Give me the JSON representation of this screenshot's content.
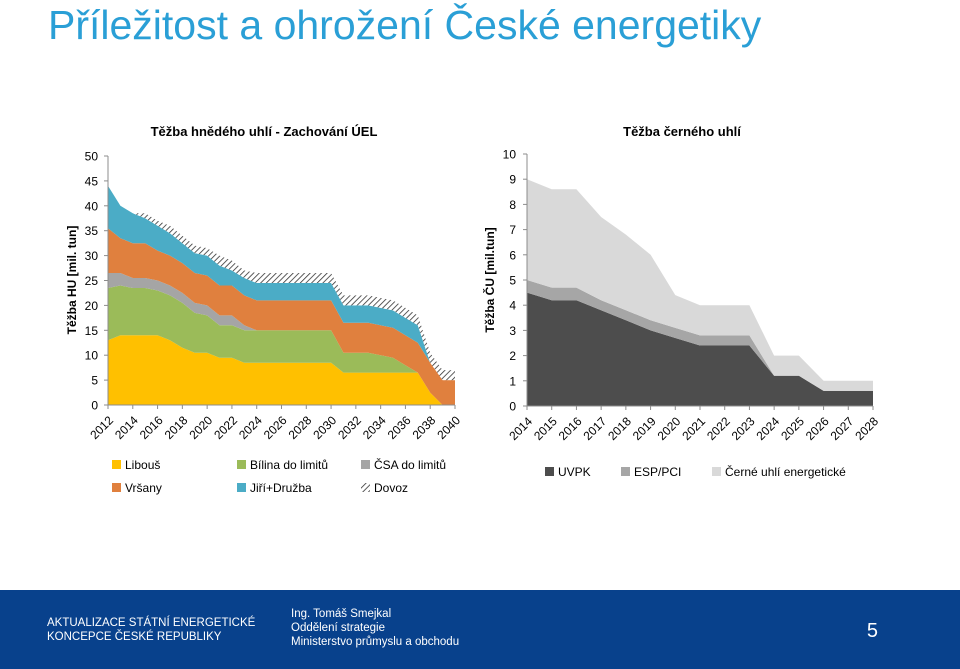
{
  "page_title": "Příležitost a ohrožení České energetiky",
  "footer": {
    "org_line1": "AKTUALIZACE STÁTNÍ ENERGETICKÉ",
    "org_line2": "KONCEPCE ČESKÉ REPUBLIKY",
    "author_name": "Ing. Tomáš Smejkal",
    "author_dept": "Oddělení strategie",
    "author_ministry": "Ministerstvo průmyslu a obchodu",
    "page_number": "5"
  },
  "colors": {
    "title": "#2a9fd6",
    "footer_bg": "#08418c",
    "libous": "#ffc000",
    "bilina": "#9bbb59",
    "csa": "#a5a5a5",
    "vrsany": "#e0803e",
    "jiri": "#4bacc6",
    "dovoz": "#333333",
    "uvpk": "#4d4d4d",
    "esp": "#a6a6a6",
    "energeticke": "#d9d9d9"
  },
  "chart_data": [
    {
      "type": "area",
      "stacked": true,
      "title": "Těžba hnědého uhlí - Zachování ÚEL",
      "ylabel": "Těžba HU [mil. tun]",
      "xlabel": "",
      "ylim": [
        0,
        50
      ],
      "yticks": [
        0,
        5,
        10,
        15,
        20,
        25,
        30,
        35,
        40,
        45,
        50
      ],
      "xtick_labels": [
        "2012",
        "2014",
        "2016",
        "2018",
        "2020",
        "2022",
        "2024",
        "2026",
        "2028",
        "2030",
        "2032",
        "2034",
        "2036",
        "2038",
        "2040"
      ],
      "legend_position": "bottom",
      "x": [
        2012,
        2013,
        2014,
        2015,
        2016,
        2017,
        2018,
        2019,
        2020,
        2021,
        2022,
        2023,
        2024,
        2025,
        2026,
        2027,
        2028,
        2029,
        2030,
        2031,
        2032,
        2033,
        2034,
        2035,
        2036,
        2037,
        2038,
        2039,
        2040
      ],
      "series": [
        {
          "name": "Libouš",
          "pattern": "solid",
          "values": [
            13,
            14,
            14,
            14,
            14,
            13,
            11.5,
            10.5,
            10.5,
            9.5,
            9.5,
            8.5,
            8.5,
            8.5,
            8.5,
            8.5,
            8.5,
            8.5,
            8.5,
            6.5,
            6.5,
            6.5,
            6.5,
            6.5,
            6.5,
            6.5,
            2.5,
            0,
            0
          ]
        },
        {
          "name": "Bílina do limitů",
          "pattern": "solid",
          "values": [
            10.5,
            10,
            9.5,
            9.5,
            9,
            9,
            9,
            8,
            7.5,
            6.5,
            6.5,
            6.5,
            6.5,
            6.5,
            6.5,
            6.5,
            6.5,
            6.5,
            6.5,
            4,
            4,
            4,
            3.5,
            3,
            1.5,
            0,
            0,
            0,
            0
          ]
        },
        {
          "name": "ČSA do limitů",
          "pattern": "solid",
          "values": [
            3,
            2.5,
            2,
            2,
            2,
            2,
            2,
            2,
            2,
            2,
            2,
            1,
            0,
            0,
            0,
            0,
            0,
            0,
            0,
            0,
            0,
            0,
            0,
            0,
            0,
            0,
            0,
            0,
            0
          ]
        },
        {
          "name": "Vršany",
          "pattern": "solid",
          "values": [
            9,
            7,
            7,
            7,
            6,
            6,
            6,
            6,
            6,
            6,
            6,
            6,
            6,
            6,
            6,
            6,
            6,
            6,
            6,
            6,
            6,
            6,
            6,
            6,
            6,
            6,
            6,
            5,
            5
          ]
        },
        {
          "name": "Jiří+Družba",
          "pattern": "solid",
          "values": [
            8.5,
            6.5,
            6,
            5,
            5,
            4.5,
            4,
            4,
            4,
            4,
            3,
            3.5,
            3.5,
            3.5,
            3.5,
            3.5,
            3.5,
            3.5,
            3.5,
            3.5,
            3.5,
            3.5,
            3.5,
            3.5,
            3.5,
            3.5,
            0,
            0,
            0
          ]
        },
        {
          "name": "Dovoz",
          "pattern": "hatched",
          "values": [
            0,
            0,
            0,
            1,
            1,
            1.5,
            1.5,
            1.5,
            1.5,
            2,
            2,
            1.5,
            2,
            2,
            2,
            2,
            2,
            2,
            2,
            2,
            2,
            2,
            2,
            2,
            2,
            2,
            2,
            2,
            2
          ]
        }
      ]
    },
    {
      "type": "area",
      "stacked": true,
      "title": "Těžba černého uhlí",
      "ylabel": "Těžba ČU [mil.tun]",
      "xlabel": "",
      "ylim": [
        0,
        10
      ],
      "yticks": [
        0,
        1,
        2,
        3,
        4,
        5,
        6,
        7,
        8,
        9,
        10
      ],
      "legend_position": "bottom",
      "categories": [
        "2014",
        "2015",
        "2016",
        "2017",
        "2018",
        "2019",
        "2020",
        "2021",
        "2022",
        "2023",
        "2024",
        "2025",
        "2026",
        "2027",
        "2028"
      ],
      "series": [
        {
          "name": "UVPK",
          "values": [
            4.5,
            4.2,
            4.2,
            3.8,
            3.4,
            3.0,
            2.7,
            2.4,
            2.4,
            2.4,
            1.2,
            1.2,
            0.6,
            0.6,
            0.6
          ]
        },
        {
          "name": "ESP/PCI",
          "values": [
            0.5,
            0.5,
            0.5,
            0.4,
            0.4,
            0.4,
            0.4,
            0.4,
            0.4,
            0.4,
            0,
            0,
            0,
            0,
            0
          ]
        },
        {
          "name": "Černé uhlí energetické",
          "values": [
            4.0,
            3.9,
            3.9,
            3.3,
            3.0,
            2.6,
            1.3,
            1.2,
            1.2,
            1.2,
            0.8,
            0.8,
            0.4,
            0.4,
            0.4
          ]
        }
      ]
    }
  ]
}
